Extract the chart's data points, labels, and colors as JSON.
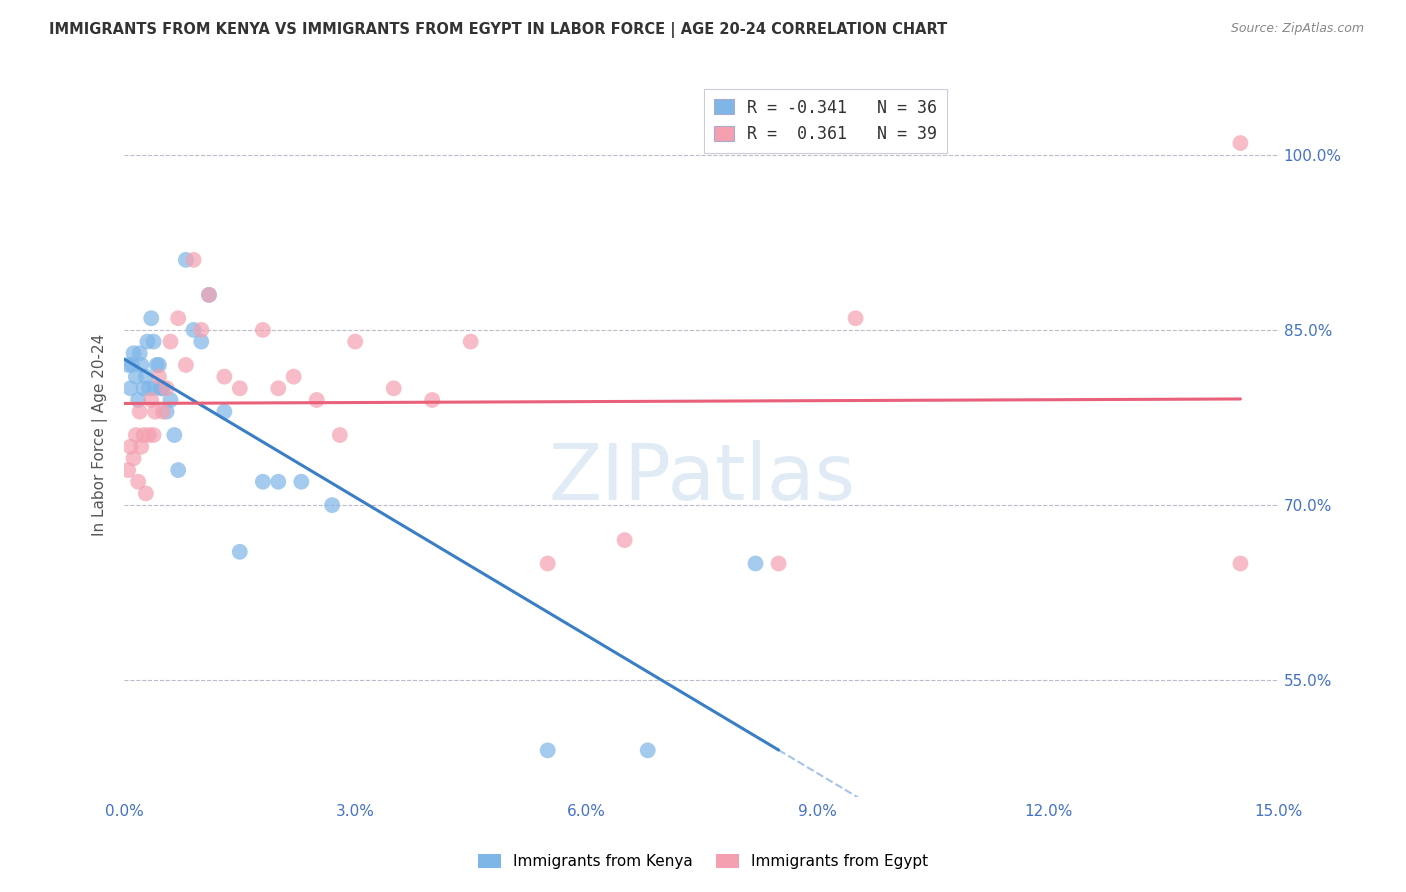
{
  "title": "IMMIGRANTS FROM KENYA VS IMMIGRANTS FROM EGYPT IN LABOR FORCE | AGE 20-24 CORRELATION CHART",
  "source": "Source: ZipAtlas.com",
  "xlabel_ticks": [
    "0.0%",
    "3.0%",
    "6.0%",
    "9.0%",
    "12.0%",
    "15.0%"
  ],
  "xlabel_vals": [
    0.0,
    3.0,
    6.0,
    9.0,
    12.0,
    15.0
  ],
  "ylabel": "In Labor Force | Age 20-24",
  "ylabel_ticks": [
    "55.0%",
    "70.0%",
    "85.0%",
    "100.0%"
  ],
  "ylabel_vals": [
    55.0,
    70.0,
    85.0,
    100.0
  ],
  "xlim": [
    0.0,
    15.0
  ],
  "ylim": [
    45.0,
    107.0
  ],
  "kenya_R": -0.341,
  "kenya_N": 36,
  "egypt_R": 0.361,
  "egypt_N": 39,
  "kenya_color": "#7EB6E8",
  "egypt_color": "#F4A0B0",
  "kenya_line_color": "#3A7EC6",
  "egypt_line_color": "#E8607A",
  "kenya_line_solid_end": 8.5,
  "watermark": "ZIPatlas",
  "kenya_x": [
    0.05,
    0.08,
    0.1,
    0.12,
    0.15,
    0.18,
    0.2,
    0.22,
    0.25,
    0.28,
    0.3,
    0.32,
    0.35,
    0.38,
    0.4,
    0.42,
    0.45,
    0.48,
    0.5,
    0.55,
    0.6,
    0.65,
    0.7,
    0.8,
    0.9,
    1.0,
    1.1,
    1.3,
    1.5,
    1.8,
    2.0,
    2.3,
    2.7,
    5.5,
    6.8,
    8.2
  ],
  "kenya_y": [
    82.0,
    80.0,
    82.0,
    83.0,
    81.0,
    79.0,
    83.0,
    82.0,
    80.0,
    81.0,
    84.0,
    80.0,
    86.0,
    84.0,
    80.0,
    82.0,
    82.0,
    80.0,
    80.0,
    78.0,
    79.0,
    76.0,
    73.0,
    91.0,
    85.0,
    84.0,
    88.0,
    78.0,
    66.0,
    72.0,
    72.0,
    72.0,
    70.0,
    49.0,
    49.0,
    65.0
  ],
  "egypt_x": [
    0.05,
    0.08,
    0.12,
    0.15,
    0.18,
    0.2,
    0.22,
    0.25,
    0.28,
    0.32,
    0.35,
    0.38,
    0.4,
    0.45,
    0.5,
    0.55,
    0.6,
    0.7,
    0.8,
    0.9,
    1.0,
    1.1,
    1.3,
    1.5,
    1.8,
    2.0,
    2.2,
    2.5,
    2.8,
    3.0,
    3.5,
    4.0,
    4.5,
    5.5,
    6.5,
    8.5,
    9.5,
    14.5,
    14.5
  ],
  "egypt_y": [
    73.0,
    75.0,
    74.0,
    76.0,
    72.0,
    78.0,
    75.0,
    76.0,
    71.0,
    76.0,
    79.0,
    76.0,
    78.0,
    81.0,
    78.0,
    80.0,
    84.0,
    86.0,
    82.0,
    91.0,
    85.0,
    88.0,
    81.0,
    80.0,
    85.0,
    80.0,
    81.0,
    79.0,
    76.0,
    84.0,
    80.0,
    79.0,
    84.0,
    65.0,
    67.0,
    65.0,
    86.0,
    65.0,
    101.0
  ]
}
